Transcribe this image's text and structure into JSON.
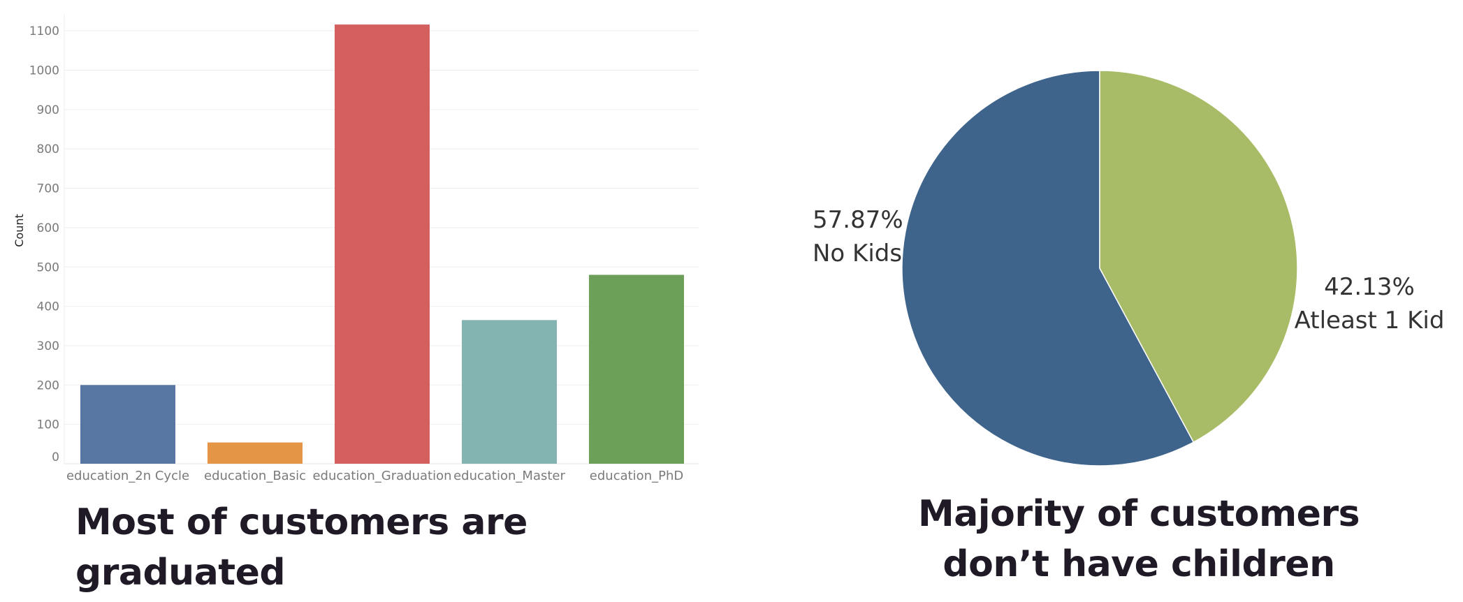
{
  "chart_data": [
    {
      "type": "bar",
      "categories": [
        "education_2n Cycle",
        "education_Basic",
        "education_Graduation",
        "education_Master",
        "education_PhD"
      ],
      "values": [
        200,
        54,
        1116,
        365,
        480
      ],
      "colors": [
        "#5876a2",
        "#e49545",
        "#d35f5f",
        "#84b4b1",
        "#6ca058"
      ],
      "ylabel": "Count",
      "yticks": [
        0,
        100,
        200,
        300,
        400,
        500,
        600,
        700,
        800,
        900,
        1000,
        1100
      ],
      "ylim": [
        0,
        1120
      ],
      "grid": true,
      "title": "Most of customers are graduated"
    },
    {
      "type": "pie",
      "slices": [
        {
          "label": "No Kids",
          "value": 57.87,
          "display": "57.87%",
          "color": "#3e648c"
        },
        {
          "label": "Atleast 1 Kid",
          "value": 42.13,
          "display": "42.13%",
          "color": "#a8bb66"
        }
      ],
      "title": "Majority of customers don’t have children"
    }
  ]
}
